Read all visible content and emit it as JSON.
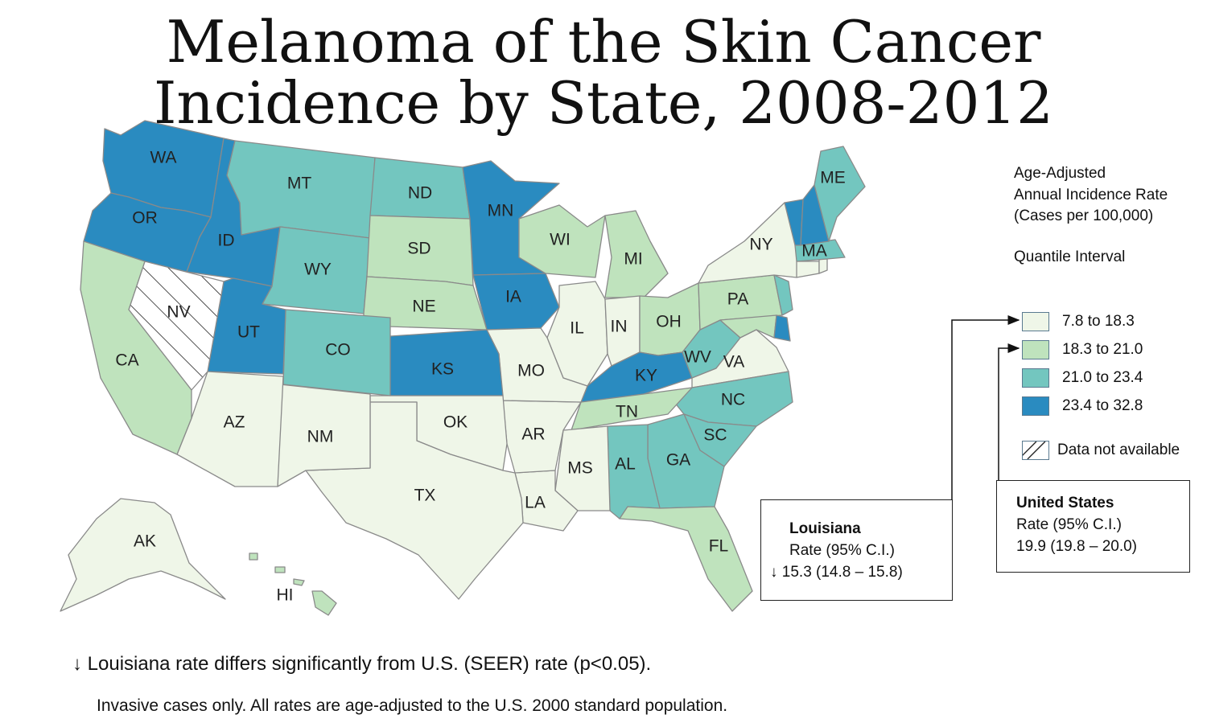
{
  "title": {
    "line1": "Melanoma of the Skin Cancer",
    "line2": "Incidence by State, 2008-2012"
  },
  "colors": {
    "q1": "#eff6e8",
    "q2": "#bfe3bd",
    "q3": "#73c6bf",
    "q4": "#2a8bc0",
    "na": "#ffffff",
    "border": "#8a8a8a"
  },
  "legend": {
    "title_line1": "Age-Adjusted",
    "title_line2": "Annual Incidence Rate",
    "title_line3": "(Cases per 100,000)",
    "interval_label": "Quantile Interval",
    "items": [
      {
        "label": "7.8 to 18.3",
        "color": "#eff6e8"
      },
      {
        "label": "18.3 to 21.0",
        "color": "#bfe3bd"
      },
      {
        "label": "21.0 to 23.4",
        "color": "#73c6bf"
      },
      {
        "label": "23.4 to 32.8",
        "color": "#2a8bc0"
      }
    ],
    "na_label": "Data not available"
  },
  "states": {
    "WA": "q4",
    "OR": "q4",
    "ID": "q4",
    "UT": "q4",
    "MN": "q4",
    "IA": "q4",
    "KS": "q4",
    "KY": "q4",
    "VT": "q4",
    "NH": "q4",
    "DE": "q4",
    "MT": "q3",
    "ND": "q3",
    "WY": "q3",
    "CO": "q3",
    "ME": "q3",
    "MA": "q3",
    "NJ": "q3",
    "WV": "q3",
    "NC": "q3",
    "SC": "q3",
    "GA": "q3",
    "AL": "q3",
    "CA": "q2",
    "SD": "q2",
    "NE": "q2",
    "WI": "q2",
    "MI": "q2",
    "OH": "q2",
    "PA": "q2",
    "TN": "q2",
    "FL": "q2",
    "HI": "q2",
    "MD": "q2",
    "AZ": "q1",
    "NM": "q1",
    "TX": "q1",
    "OK": "q1",
    "MO": "q1",
    "AR": "q1",
    "LA": "q1",
    "MS": "q1",
    "IL": "q1",
    "IN": "q1",
    "VA": "q1",
    "NY": "q1",
    "AK": "q1",
    "CT": "q1",
    "RI": "q1",
    "NV": "na"
  },
  "state_labels": [
    "WA",
    "OR",
    "ID",
    "MT",
    "ND",
    "MN",
    "WI",
    "MI",
    "NY",
    "ME",
    "MA",
    "SD",
    "WY",
    "NE",
    "IA",
    "IL",
    "IN",
    "OH",
    "PA",
    "NV",
    "UT",
    "CO",
    "KS",
    "MO",
    "WV",
    "VA",
    "KY",
    "CA",
    "AZ",
    "NM",
    "OK",
    "AR",
    "TN",
    "NC",
    "SC",
    "TX",
    "MS",
    "AL",
    "GA",
    "LA",
    "FL",
    "AK",
    "HI"
  ],
  "louisiana_box": {
    "name": "Louisiana",
    "rate_label": "Rate (95% C.I.)",
    "arrow": "↓",
    "value": "15.3 (14.8 – 15.8)"
  },
  "us_box": {
    "name": "United States",
    "rate_label": "Rate (95% C.I.)",
    "value": "19.9 (19.8 – 20.0)"
  },
  "footnotes": {
    "arrow": "↓",
    "significance": "Louisiana rate differs significantly from U.S. (SEER) rate (p<0.05).",
    "invasive": "Invasive cases only. All rates are age-adjusted to the U.S. 2000 standard population."
  }
}
